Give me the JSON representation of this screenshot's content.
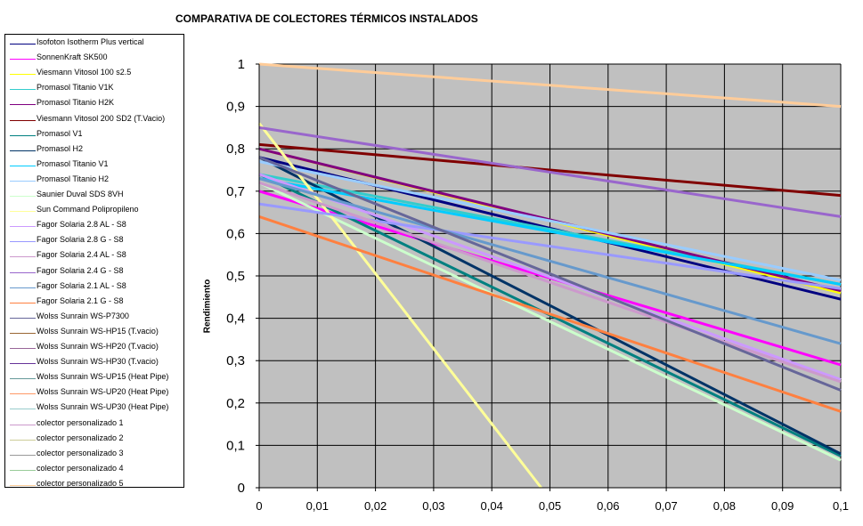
{
  "chart_data": {
    "type": "line",
    "title": "COMPARATIVA DE COLECTORES TÉRMICOS INSTALADOS",
    "xlabel": "",
    "ylabel": "Rendimiento",
    "xlim": [
      0,
      0.1
    ],
    "ylim": [
      0,
      1
    ],
    "grid": true,
    "legend_position": "left",
    "xticks": [
      "0",
      "0,01",
      "0,02",
      "0,03",
      "0,04",
      "0,05",
      "0,06",
      "0,07",
      "0,08",
      "0,09",
      "0,1"
    ],
    "yticks": [
      "0",
      "0,1",
      "0,2",
      "0,3",
      "0,4",
      "0,5",
      "0,6",
      "0,7",
      "0,8",
      "0,9",
      "1"
    ],
    "plot_background": "#c0c0c0",
    "series": [
      {
        "name": "Isofoton Isotherm Plus vertical",
        "color": "#000080",
        "x": [
          0,
          0.1
        ],
        "y": [
          0.78,
          0.445
        ]
      },
      {
        "name": "SonnenKraft SK500",
        "color": "#ff00ff",
        "x": [
          0,
          0.1
        ],
        "y": [
          0.7,
          0.29
        ]
      },
      {
        "name": "Viesmann Vitosol 100 s2.5",
        "color": "#ffff00",
        "x": [
          0,
          0.1
        ],
        "y": [
          0.8,
          0.46
        ]
      },
      {
        "name": "Promasol Titanio V1K",
        "color": "#33cccc",
        "x": [
          0,
          0.1
        ],
        "y": [
          0.74,
          0.48
        ]
      },
      {
        "name": "Promasol Titanio H2K",
        "color": "#800080",
        "x": [
          0,
          0.1
        ],
        "y": [
          0.8,
          0.465
        ]
      },
      {
        "name": "Viesmann Vitosol 200 SD2 (T.Vacio)",
        "color": "#800000",
        "x": [
          0,
          0.1
        ],
        "y": [
          0.81,
          0.69
        ]
      },
      {
        "name": "Promasol V1",
        "color": "#008080",
        "x": [
          0,
          0.1
        ],
        "y": [
          0.74,
          0.075
        ]
      },
      {
        "name": "Promasol H2",
        "color": "#003366",
        "x": [
          0,
          0.1
        ],
        "y": [
          0.78,
          0.08
        ]
      },
      {
        "name": "Promasol Titanio V1",
        "color": "#00ccff",
        "x": [
          0,
          0.1
        ],
        "y": [
          0.73,
          0.48
        ]
      },
      {
        "name": "Promasol Titanio H2",
        "color": "#99ccff",
        "x": [
          0,
          0.1
        ],
        "y": [
          0.77,
          0.49
        ]
      },
      {
        "name": "Saunier Duval SDS 8VH",
        "color": "#ccffcc",
        "x": [
          0,
          0.1
        ],
        "y": [
          0.72,
          0.065
        ]
      },
      {
        "name": "Sun Command Polipropileno",
        "color": "#ffff99",
        "x": [
          0,
          0.0485
        ],
        "y": [
          0.86,
          0
        ]
      },
      {
        "name": "Fagor Solaria 2.8 AL - S8",
        "color": "#cc99ff",
        "x": [
          0,
          0.1
        ],
        "y": [
          0.74,
          0.255
        ]
      },
      {
        "name": "Fagor Solaria 2.8 G - S8",
        "color": "#9999ff",
        "x": [
          0,
          0.1
        ],
        "y": [
          0.67,
          0.47
        ]
      },
      {
        "name": "Fagor Solaria 2.4 AL - S8",
        "color": "#cc99cc",
        "x": [
          0,
          0.1
        ],
        "y": [
          0.72,
          0.25
        ]
      },
      {
        "name": "Fagor Solaria 2.4 G - S8",
        "color": "#9966cc",
        "x": [
          0,
          0.1
        ],
        "y": [
          0.85,
          0.64
        ]
      },
      {
        "name": "Fagor Solaria 2.1 AL - S8",
        "color": "#6699cc",
        "x": [
          0,
          0.1
        ],
        "y": [
          0.73,
          0.34
        ]
      },
      {
        "name": "Fagor Solaria 2.1 G - S8",
        "color": "#ff8040",
        "x": [
          0,
          0.1
        ],
        "y": [
          0.64,
          0.18
        ]
      },
      {
        "name": "Wolss Sunrain WS-P7300",
        "color": "#666699",
        "x": [
          0,
          0.1
        ],
        "y": [
          0.78,
          0.23
        ]
      },
      {
        "name": "Wolss Sunrain WS-HP15 (T.vacio)",
        "color": "#996633",
        "x": [],
        "y": []
      },
      {
        "name": "Wolss Sunrain WS-HP20 (T.vacio)",
        "color": "#996699",
        "x": [],
        "y": []
      },
      {
        "name": "Wolss Sunrain WS-HP30 (T.vacio)",
        "color": "#663399",
        "x": [],
        "y": []
      },
      {
        "name": "Wolss Sunrain WS-UP15 (Heat Pipe)",
        "color": "#669999",
        "x": [],
        "y": []
      },
      {
        "name": "Wolss Sunrain WS-UP20 (Heat Pipe)",
        "color": "#ff9966",
        "x": [],
        "y": []
      },
      {
        "name": "Wolss Sunrain WS-UP30 (Heat Pipe)",
        "color": "#99cccc",
        "x": [],
        "y": []
      },
      {
        "name": "colector personalizado 1",
        "color": "#cc99cc",
        "x": [],
        "y": []
      },
      {
        "name": "colector personalizado 2",
        "color": "#cccc99",
        "x": [],
        "y": []
      },
      {
        "name": "colector personalizado 3",
        "color": "#999999",
        "x": [],
        "y": []
      },
      {
        "name": "colector personalizado 4",
        "color": "#99cc99",
        "x": [],
        "y": []
      },
      {
        "name": "colector personalizado 5",
        "color": "#ffcc99",
        "x": [
          0,
          0.1
        ],
        "y": [
          1.0,
          0.9
        ]
      }
    ]
  }
}
